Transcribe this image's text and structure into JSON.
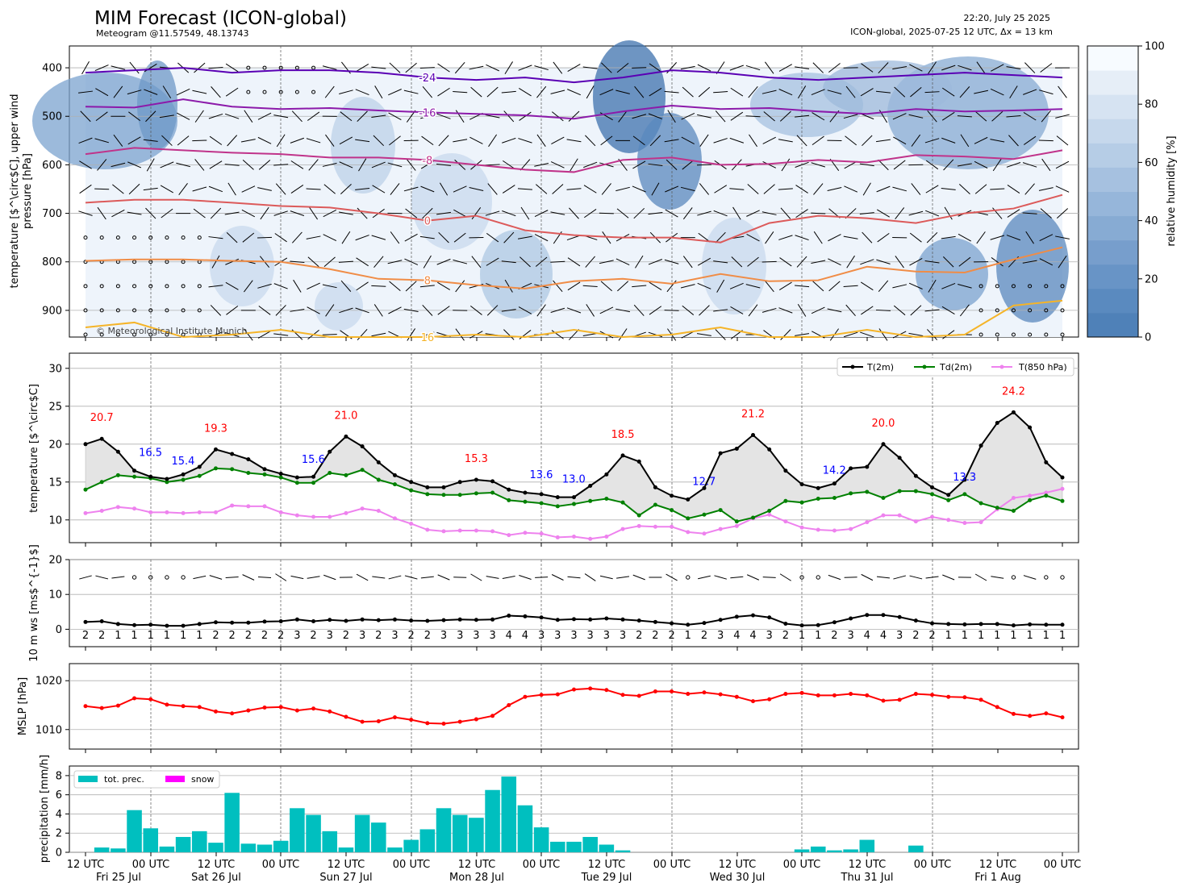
{
  "header": {
    "title": "MIM Forecast (ICON-global)",
    "subtitle": "Meteogram @11.57549, 48.13743",
    "timestamp": "22:20, July 25 2025",
    "model_info": "ICON-global, 2025-07-25 12 UTC, Δx = 13 km"
  },
  "colors": {
    "rh_low": "#4a7fb5",
    "rh_high": "#f7fbff",
    "t2m": "#000000",
    "td2m": "#008000",
    "t850": "#ee82ee",
    "mslp": "#ff0000",
    "precip": "#00bfbf",
    "snow": "#ff00ff",
    "max_label": "#ff0000",
    "min_label": "#0000ff"
  },
  "chart_data": [
    {
      "type": "heatmap",
      "name": "upper_air",
      "ylabel_line1": "temperature [$^\\circ$C], upper wind",
      "ylabel_line2": "pressure [hPa]",
      "ylim": [
        955,
        355
      ],
      "yticks": [
        400,
        500,
        600,
        700,
        800,
        900
      ],
      "colorbar_label": "relative humidity [%]",
      "colorbar_ticks": [
        0,
        20,
        40,
        60,
        80,
        100
      ],
      "copyright": "© Meteorological Institute Munich",
      "isotherm_labels": [
        "-24",
        "-16",
        "-8",
        "0",
        "8",
        "16"
      ],
      "isotherms": [
        {
          "label": "-24",
          "levels": [
            410,
            405,
            400,
            410,
            405,
            405,
            410,
            420,
            425,
            420,
            430,
            420,
            405,
            410,
            420,
            425,
            420,
            415,
            410,
            415,
            420
          ]
        },
        {
          "label": "-16",
          "levels": [
            480,
            482,
            465,
            480,
            485,
            483,
            488,
            492,
            495,
            498,
            505,
            490,
            478,
            485,
            483,
            490,
            495,
            485,
            490,
            488,
            485
          ]
        },
        {
          "label": "-8",
          "levels": [
            578,
            565,
            570,
            575,
            578,
            585,
            585,
            590,
            600,
            610,
            615,
            590,
            585,
            600,
            598,
            590,
            595,
            580,
            583,
            588,
            570
          ]
        },
        {
          "label": "0",
          "levels": [
            678,
            672,
            672,
            678,
            685,
            688,
            700,
            715,
            705,
            735,
            745,
            750,
            750,
            760,
            720,
            705,
            710,
            720,
            700,
            690,
            662
          ]
        },
        {
          "label": "8",
          "levels": [
            798,
            795,
            795,
            798,
            800,
            815,
            835,
            838,
            848,
            855,
            840,
            835,
            845,
            825,
            840,
            838,
            810,
            820,
            822,
            795,
            770
          ]
        },
        {
          "label": "16",
          "levels": [
            935,
            925,
            955,
            950,
            940,
            955,
            955,
            955,
            950,
            955,
            940,
            955,
            950,
            935,
            955,
            955,
            940,
            955,
            950,
            890,
            880
          ]
        }
      ]
    },
    {
      "type": "line",
      "name": "temperature",
      "ylabel": "temperature [$^\\circ$C]",
      "ylim": [
        7,
        32
      ],
      "yticks": [
        10,
        15,
        20,
        25,
        30
      ],
      "series": [
        {
          "name": "T(2m)",
          "values": [
            20.0,
            20.7,
            19.0,
            16.5,
            15.7,
            15.4,
            16.0,
            17.0,
            19.3,
            18.7,
            18.0,
            16.7,
            16.1,
            15.6,
            15.7,
            19.0,
            21.0,
            19.7,
            17.6,
            15.9,
            15.0,
            14.3,
            14.3,
            15.0,
            15.3,
            15.1,
            14.0,
            13.6,
            13.4,
            13.0,
            13.0,
            14.5,
            16.0,
            18.5,
            17.7,
            14.3,
            13.2,
            12.7,
            14.2,
            18.8,
            19.4,
            21.2,
            19.3,
            16.5,
            14.7,
            14.2,
            14.8,
            16.8,
            17.0,
            20.0,
            18.2,
            15.8,
            14.3,
            13.3,
            15.3,
            19.8,
            22.8,
            24.2,
            22.2,
            17.6,
            15.6
          ]
        },
        {
          "name": "Td(2m)",
          "values": [
            14.0,
            15.0,
            15.9,
            15.7,
            15.5,
            15.0,
            15.3,
            15.8,
            16.8,
            16.7,
            16.2,
            16.0,
            15.6,
            14.9,
            14.9,
            16.2,
            15.9,
            16.6,
            15.3,
            14.7,
            13.9,
            13.4,
            13.3,
            13.3,
            13.5,
            13.6,
            12.6,
            12.4,
            12.2,
            11.8,
            12.1,
            12.5,
            12.8,
            12.3,
            10.6,
            12.0,
            11.3,
            10.2,
            10.7,
            11.3,
            9.8,
            10.3,
            11.2,
            12.5,
            12.3,
            12.8,
            12.9,
            13.5,
            13.7,
            12.9,
            13.8,
            13.8,
            13.4,
            12.6,
            13.4,
            12.2,
            11.6,
            11.2,
            12.6,
            13.2,
            12.5
          ]
        },
        {
          "name": "T(850 hPa)",
          "values": [
            10.9,
            11.2,
            11.7,
            11.5,
            11.0,
            11.0,
            10.9,
            11.0,
            11.0,
            11.9,
            11.8,
            11.8,
            11.0,
            10.6,
            10.4,
            10.4,
            10.9,
            11.5,
            11.2,
            10.2,
            9.5,
            8.7,
            8.5,
            8.6,
            8.6,
            8.5,
            8.0,
            8.3,
            8.2,
            7.7,
            7.8,
            7.5,
            7.8,
            8.8,
            9.2,
            9.1,
            9.1,
            8.4,
            8.2,
            8.8,
            9.2,
            10.2,
            10.7,
            9.8,
            9.0,
            8.7,
            8.6,
            8.8,
            9.7,
            10.6,
            10.6,
            9.8,
            10.4,
            10.0,
            9.6,
            9.7,
            11.4,
            12.9,
            13.2,
            13.6,
            14.1
          ]
        }
      ],
      "extrema": [
        {
          "idx": 1,
          "text": "20.7",
          "kind": "max"
        },
        {
          "idx": 3,
          "text": "16.5",
          "kind": "min"
        },
        {
          "idx": 5,
          "text": "15.4",
          "kind": "min"
        },
        {
          "idx": 8,
          "text": "19.3",
          "kind": "max"
        },
        {
          "idx": 13,
          "text": "15.6",
          "kind": "min"
        },
        {
          "idx": 16,
          "text": "21.0",
          "kind": "max"
        },
        {
          "idx": 24,
          "text": "15.3",
          "kind": "max"
        },
        {
          "idx": 27,
          "text": "13.6",
          "kind": "min"
        },
        {
          "idx": 29,
          "text": "13.0",
          "kind": "min"
        },
        {
          "idx": 33,
          "text": "18.5",
          "kind": "max"
        },
        {
          "idx": 37,
          "text": "12.7",
          "kind": "min"
        },
        {
          "idx": 41,
          "text": "21.2",
          "kind": "max"
        },
        {
          "idx": 45,
          "text": "14.2",
          "kind": "min"
        },
        {
          "idx": 49,
          "text": "20.0",
          "kind": "max"
        },
        {
          "idx": 53,
          "text": "13.3",
          "kind": "min"
        },
        {
          "idx": 57,
          "text": "24.2",
          "kind": "max"
        }
      ],
      "legend": "top-right"
    },
    {
      "type": "line",
      "name": "wind",
      "ylabel": "10 m ws [ms$^{-1}$]",
      "ylim": [
        -5,
        20
      ],
      "yticks": [
        0,
        10,
        20
      ],
      "values": [
        2.1,
        2.3,
        1.5,
        1.2,
        1.3,
        1.0,
        1.0,
        1.5,
        2.0,
        1.9,
        1.9,
        2.2,
        2.3,
        2.8,
        2.3,
        2.7,
        2.4,
        2.8,
        2.6,
        2.8,
        2.5,
        2.4,
        2.6,
        2.8,
        2.7,
        2.8,
        3.9,
        3.7,
        3.4,
        2.7,
        2.9,
        2.8,
        3.1,
        2.8,
        2.5,
        2.1,
        1.7,
        1.3,
        1.8,
        2.7,
        3.6,
        4.0,
        3.4,
        1.6,
        1.1,
        1.2,
        2.0,
        3.1,
        4.1,
        4.1,
        3.5,
        2.5,
        1.7,
        1.5,
        1.4,
        1.5,
        1.5,
        1.1,
        1.4,
        1.3,
        1.3
      ],
      "bft_labels": [
        "2",
        "2",
        "1",
        "1",
        "1",
        "1",
        "1",
        "1",
        "2",
        "2",
        "2",
        "2",
        "2",
        "3",
        "2",
        "3",
        "2",
        "3",
        "2",
        "3",
        "2",
        "2",
        "3",
        "3",
        "3",
        "3",
        "4",
        "4",
        "3",
        "3",
        "3",
        "3",
        "3",
        "3",
        "2",
        "2",
        "2",
        "1",
        "2",
        "3",
        "4",
        "4",
        "3",
        "2",
        "1",
        "1",
        "2",
        "3",
        "4",
        "4",
        "3",
        "2",
        "2",
        "1",
        "1",
        "1",
        "1",
        "1",
        "1",
        "1",
        "1"
      ]
    },
    {
      "type": "line",
      "name": "pressure",
      "ylabel": "MSLP [hPa]",
      "ylim": [
        1006,
        1023.5
      ],
      "yticks": [
        1010,
        1020
      ],
      "values": [
        1014.8,
        1014.4,
        1014.9,
        1016.4,
        1016.2,
        1015.1,
        1014.8,
        1014.6,
        1013.7,
        1013.3,
        1013.9,
        1014.5,
        1014.6,
        1013.9,
        1014.3,
        1013.7,
        1012.6,
        1011.6,
        1011.7,
        1012.5,
        1012.0,
        1011.3,
        1011.2,
        1011.6,
        1012.1,
        1012.8,
        1015.0,
        1016.7,
        1017.1,
        1017.2,
        1018.2,
        1018.4,
        1018.1,
        1017.1,
        1016.9,
        1017.8,
        1017.8,
        1017.3,
        1017.6,
        1017.2,
        1016.7,
        1015.8,
        1016.2,
        1017.3,
        1017.5,
        1017.0,
        1017.0,
        1017.3,
        1017.0,
        1015.9,
        1016.1,
        1017.3,
        1017.1,
        1016.7,
        1016.6,
        1016.1,
        1014.6,
        1013.2,
        1012.8,
        1013.3,
        1012.5
      ]
    },
    {
      "type": "bar",
      "name": "precipitation",
      "ylabel": "precipitation [mm/h]",
      "ylim": [
        0,
        9
      ],
      "yticks": [
        0,
        2,
        4,
        6,
        8
      ],
      "series": [
        {
          "name": "tot. prec.",
          "values": [
            0.0,
            0.5,
            0.4,
            4.4,
            2.5,
            0.6,
            1.6,
            2.2,
            1.0,
            6.2,
            0.9,
            0.8,
            1.2,
            4.6,
            3.9,
            2.2,
            0.5,
            3.9,
            3.1,
            0.5,
            1.3,
            2.4,
            4.6,
            3.9,
            3.6,
            6.5,
            7.9,
            4.9,
            2.6,
            1.1,
            1.1,
            1.6,
            0.8,
            0.2,
            0,
            0,
            0,
            0,
            0,
            0,
            0,
            0,
            0,
            0,
            0.3,
            0.6,
            0.2,
            0.3,
            1.3,
            0,
            0,
            0.7,
            0,
            0,
            0,
            0,
            0,
            0,
            0,
            0,
            0
          ]
        },
        {
          "name": "snow",
          "values": []
        }
      ],
      "legend": "top-left"
    }
  ],
  "xaxis": {
    "tick_labels": [
      "12 UTC",
      "00 UTC",
      "12 UTC",
      "00 UTC",
      "12 UTC",
      "00 UTC",
      "12 UTC",
      "00 UTC",
      "12 UTC",
      "00 UTC",
      "12 UTC",
      "00 UTC",
      "12 UTC",
      "00 UTC",
      "12 UTC",
      "00 UTC"
    ],
    "day_labels": [
      "Fri 25 Jul",
      "Sat 26 Jul",
      "Sun 27 Jul",
      "Mon 28 Jul",
      "Tue 29 Jul",
      "Wed 30 Jul",
      "Thu 31 Jul",
      "Fri 1 Aug"
    ]
  }
}
